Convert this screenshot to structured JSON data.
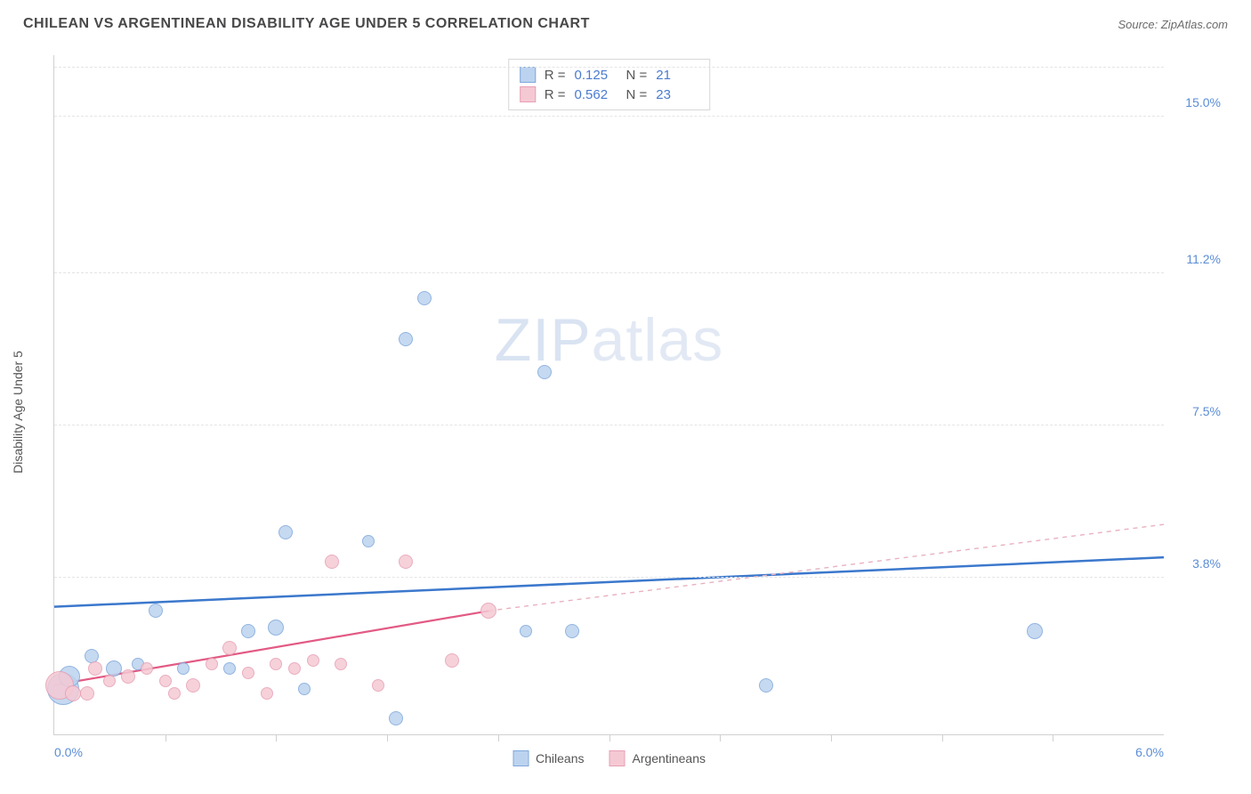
{
  "title": "CHILEAN VS ARGENTINEAN DISABILITY AGE UNDER 5 CORRELATION CHART",
  "source": "Source: ZipAtlas.com",
  "ylabel": "Disability Age Under 5",
  "watermark_a": "ZIP",
  "watermark_b": "atlas",
  "chart": {
    "type": "scatter",
    "background_color": "#ffffff",
    "grid_color": "#e4e4e4",
    "axis_color": "#d0d0d0",
    "xlim": [
      0,
      6.0
    ],
    "ylim": [
      0,
      16.5
    ],
    "xticks_minor": [
      0.6,
      1.2,
      1.8,
      2.4,
      3.0,
      3.6,
      4.2,
      4.8,
      5.4
    ],
    "xaxis_min_label": "0.0%",
    "xaxis_max_label": "6.0%",
    "ytick_values": [
      3.8,
      7.5,
      11.2,
      15.0
    ],
    "ytick_labels": [
      "3.8%",
      "7.5%",
      "11.2%",
      "15.0%"
    ],
    "label_fontsize": 14,
    "title_fontsize": 16,
    "tick_color": "#5b8dd6"
  },
  "series": [
    {
      "name": "Chileans",
      "fill_color": "#bcd3ef",
      "stroke_color": "#7fa8db",
      "trend_color": "#3b78cc",
      "trend_width": 2.5,
      "trend_dash_color": "#3b78cc",
      "R": "0.125",
      "N": "21",
      "trend": {
        "x1": 0,
        "y1": 3.1,
        "x2": 6.0,
        "y2": 4.3
      },
      "points": [
        {
          "x": 0.05,
          "y": 1.1,
          "r": 18
        },
        {
          "x": 0.08,
          "y": 1.4,
          "r": 12
        },
        {
          "x": 0.2,
          "y": 1.9,
          "r": 8
        },
        {
          "x": 0.32,
          "y": 1.6,
          "r": 9
        },
        {
          "x": 0.45,
          "y": 1.7,
          "r": 7
        },
        {
          "x": 0.55,
          "y": 3.0,
          "r": 8
        },
        {
          "x": 0.7,
          "y": 1.6,
          "r": 7
        },
        {
          "x": 0.95,
          "y": 1.6,
          "r": 7
        },
        {
          "x": 1.05,
          "y": 2.5,
          "r": 8
        },
        {
          "x": 1.2,
          "y": 2.6,
          "r": 9
        },
        {
          "x": 1.35,
          "y": 1.1,
          "r": 7
        },
        {
          "x": 1.25,
          "y": 4.9,
          "r": 8
        },
        {
          "x": 1.7,
          "y": 4.7,
          "r": 7
        },
        {
          "x": 1.85,
          "y": 0.4,
          "r": 8
        },
        {
          "x": 1.9,
          "y": 9.6,
          "r": 8
        },
        {
          "x": 2.0,
          "y": 10.6,
          "r": 8
        },
        {
          "x": 2.55,
          "y": 2.5,
          "r": 7
        },
        {
          "x": 2.65,
          "y": 8.8,
          "r": 8
        },
        {
          "x": 2.8,
          "y": 2.5,
          "r": 8
        },
        {
          "x": 3.85,
          "y": 1.2,
          "r": 8
        },
        {
          "x": 5.3,
          "y": 2.5,
          "r": 9
        }
      ]
    },
    {
      "name": "Argentineans",
      "fill_color": "#f5c9d4",
      "stroke_color": "#e6a0b4",
      "trend_color": "#e25a84",
      "trend_width": 2.2,
      "trend_dash_color": "#e9b1c0",
      "R": "0.562",
      "N": "23",
      "trend": {
        "x1": 0,
        "y1": 1.2,
        "x2": 2.35,
        "y2": 3.0
      },
      "trend_ext": {
        "x1": 2.35,
        "y1": 3.0,
        "x2": 6.0,
        "y2": 5.1
      },
      "points": [
        {
          "x": 0.03,
          "y": 1.2,
          "r": 16
        },
        {
          "x": 0.1,
          "y": 1.0,
          "r": 9
        },
        {
          "x": 0.18,
          "y": 1.0,
          "r": 8
        },
        {
          "x": 0.22,
          "y": 1.6,
          "r": 8
        },
        {
          "x": 0.3,
          "y": 1.3,
          "r": 7
        },
        {
          "x": 0.4,
          "y": 1.4,
          "r": 8
        },
        {
          "x": 0.5,
          "y": 1.6,
          "r": 7
        },
        {
          "x": 0.6,
          "y": 1.3,
          "r": 7
        },
        {
          "x": 0.65,
          "y": 1.0,
          "r": 7
        },
        {
          "x": 0.75,
          "y": 1.2,
          "r": 8
        },
        {
          "x": 0.85,
          "y": 1.7,
          "r": 7
        },
        {
          "x": 0.95,
          "y": 2.1,
          "r": 8
        },
        {
          "x": 1.05,
          "y": 1.5,
          "r": 7
        },
        {
          "x": 1.15,
          "y": 1.0,
          "r": 7
        },
        {
          "x": 1.2,
          "y": 1.7,
          "r": 7
        },
        {
          "x": 1.3,
          "y": 1.6,
          "r": 7
        },
        {
          "x": 1.4,
          "y": 1.8,
          "r": 7
        },
        {
          "x": 1.5,
          "y": 4.2,
          "r": 8
        },
        {
          "x": 1.55,
          "y": 1.7,
          "r": 7
        },
        {
          "x": 1.75,
          "y": 1.2,
          "r": 7
        },
        {
          "x": 1.9,
          "y": 4.2,
          "r": 8
        },
        {
          "x": 2.15,
          "y": 1.8,
          "r": 8
        },
        {
          "x": 2.35,
          "y": 3.0,
          "r": 9
        }
      ]
    }
  ],
  "legend": {
    "items": [
      "Chileans",
      "Argentineans"
    ]
  },
  "stats_labels": {
    "R": "R  =",
    "N": "N  ="
  }
}
